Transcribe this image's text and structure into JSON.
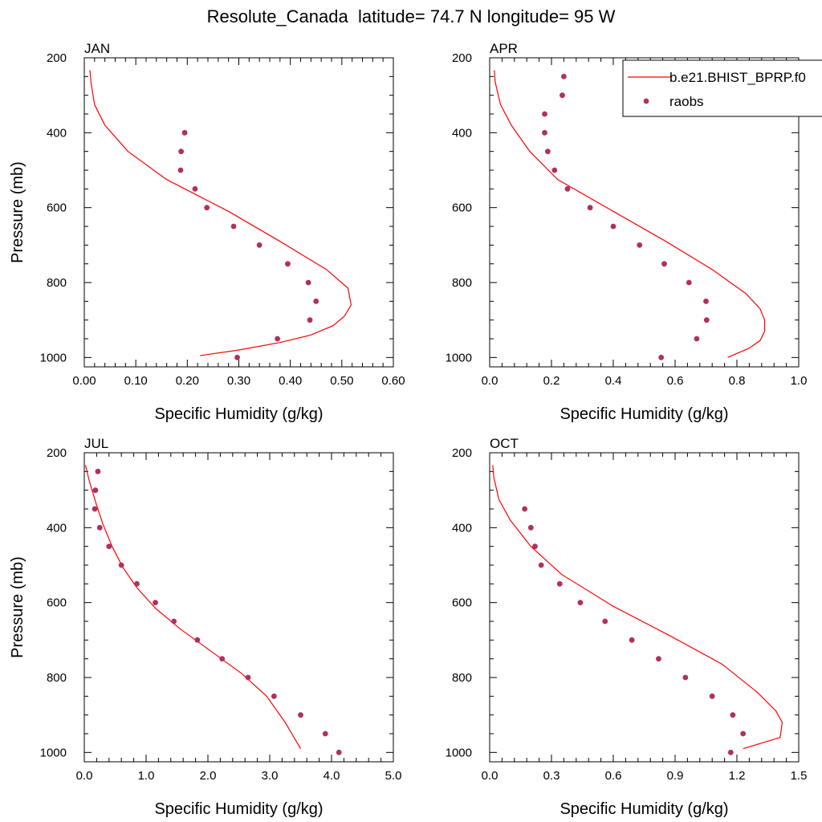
{
  "figure": {
    "title": "Resolute_Canada  latitude= 74.7 N longitude= 95 W"
  },
  "legend": {
    "model_label": "b.e21.BHIST_BPRP.f0",
    "obs_label": "raobs",
    "placement": "top-right of APR panel"
  },
  "colors": {
    "model_line": "#ff0000",
    "obs_marker": "#b03060",
    "axis": "#000000"
  },
  "chart_data": [
    {
      "type": "line",
      "panel_label": "JAN",
      "xlabel": "Specific Humidity (g/kg)",
      "ylabel": "Pressure (mb)",
      "xlim": [
        0,
        0.6
      ],
      "ylim": [
        1025,
        200
      ],
      "xticks": [
        0,
        0.1,
        0.2,
        0.3,
        0.4,
        0.5,
        0.6
      ],
      "xtick_labels": [
        "0.00",
        "0.10",
        "0.20",
        "0.30",
        "0.40",
        "0.50",
        "0.60"
      ],
      "yticks": [
        200,
        400,
        600,
        800,
        1000
      ],
      "ytick_labels": [
        "200",
        "400",
        "600",
        "800",
        "1000"
      ],
      "series": [
        {
          "name": "b.e21.BHIST_BPRP.f0",
          "kind": "line",
          "x": [
            0.011,
            0.013,
            0.02,
            0.04,
            0.085,
            0.16,
            0.28,
            0.38,
            0.47,
            0.512,
            0.518,
            0.505,
            0.483,
            0.44,
            0.38,
            0.3,
            0.225
          ],
          "y": [
            233,
            265,
            325,
            380,
            450,
            525,
            610,
            690,
            765,
            815,
            860,
            890,
            915,
            940,
            960,
            980,
            995
          ]
        },
        {
          "name": "raobs",
          "kind": "scatter",
          "x": [
            0.195,
            0.188,
            0.187,
            0.215,
            0.238,
            0.29,
            0.34,
            0.395,
            0.435,
            0.45,
            0.438,
            0.375,
            0.297
          ],
          "y": [
            400,
            450,
            500,
            550,
            600,
            650,
            700,
            750,
            800,
            850,
            900,
            950,
            1000
          ]
        }
      ]
    },
    {
      "type": "line",
      "panel_label": "APR",
      "xlabel": "Specific Humidity (g/kg)",
      "ylabel": "",
      "xlim": [
        0,
        1.0
      ],
      "ylim": [
        1025,
        200
      ],
      "xticks": [
        0,
        0.2,
        0.4,
        0.6,
        0.8,
        1.0
      ],
      "xtick_labels": [
        "0.0",
        "0.2",
        "0.4",
        "0.6",
        "0.8",
        "1.0"
      ],
      "yticks": [
        200,
        400,
        600,
        800,
        1000
      ],
      "ytick_labels": [
        "200",
        "400",
        "600",
        "800",
        "1000"
      ],
      "series": [
        {
          "name": "b.e21.BHIST_BPRP.f0",
          "kind": "line",
          "x": [
            0.015,
            0.018,
            0.035,
            0.07,
            0.13,
            0.22,
            0.4,
            0.57,
            0.72,
            0.83,
            0.875,
            0.89,
            0.89,
            0.875,
            0.84,
            0.77
          ],
          "y": [
            233,
            265,
            325,
            380,
            450,
            525,
            610,
            690,
            765,
            830,
            870,
            900,
            930,
            955,
            975,
            1000
          ]
        },
        {
          "name": "raobs",
          "kind": "scatter",
          "x": [
            0.24,
            0.235,
            0.178,
            0.178,
            0.188,
            0.21,
            0.252,
            0.325,
            0.4,
            0.485,
            0.565,
            0.645,
            0.7,
            0.702,
            0.67,
            0.555
          ],
          "y": [
            250,
            300,
            350,
            400,
            450,
            500,
            550,
            600,
            650,
            700,
            750,
            800,
            850,
            900,
            950,
            1000
          ]
        }
      ]
    },
    {
      "type": "line",
      "panel_label": "JUL",
      "xlabel": "Specific Humidity (g/kg)",
      "ylabel": "Pressure (mb)",
      "xlim": [
        0,
        5.0
      ],
      "ylim": [
        1025,
        200
      ],
      "xticks": [
        0,
        1,
        2,
        3,
        4,
        5
      ],
      "xtick_labels": [
        "0.0",
        "1.0",
        "2.0",
        "3.0",
        "4.0",
        "5.0"
      ],
      "yticks": [
        200,
        400,
        600,
        800,
        1000
      ],
      "ytick_labels": [
        "200",
        "400",
        "600",
        "800",
        "1000"
      ],
      "series": [
        {
          "name": "b.e21.BHIST_BPRP.f0",
          "kind": "line",
          "x": [
            0.02,
            0.08,
            0.18,
            0.3,
            0.45,
            0.62,
            0.85,
            1.15,
            1.55,
            2.05,
            2.55,
            2.95,
            3.25,
            3.5
          ],
          "y": [
            233,
            275,
            330,
            390,
            450,
            505,
            560,
            615,
            670,
            730,
            790,
            850,
            920,
            990
          ]
        },
        {
          "name": "raobs",
          "kind": "scatter",
          "x": [
            0.22,
            0.18,
            0.17,
            0.25,
            0.4,
            0.6,
            0.85,
            1.15,
            1.45,
            1.83,
            2.23,
            2.65,
            3.07,
            3.5,
            3.9,
            4.12
          ],
          "y": [
            250,
            300,
            350,
            400,
            450,
            500,
            550,
            600,
            650,
            700,
            750,
            800,
            850,
            900,
            950,
            1000
          ]
        }
      ]
    },
    {
      "type": "line",
      "panel_label": "OCT",
      "xlabel": "Specific Humidity (g/kg)",
      "ylabel": "",
      "xlim": [
        0,
        1.5
      ],
      "ylim": [
        1025,
        200
      ],
      "xticks": [
        0,
        0.3,
        0.6,
        0.9,
        1.2,
        1.5
      ],
      "xtick_labels": [
        "0.0",
        "0.3",
        "0.6",
        "0.9",
        "1.2",
        "1.5"
      ],
      "yticks": [
        200,
        400,
        600,
        800,
        1000
      ],
      "ytick_labels": [
        "200",
        "400",
        "600",
        "800",
        "1000"
      ],
      "series": [
        {
          "name": "b.e21.BHIST_BPRP.f0",
          "kind": "line",
          "x": [
            0.015,
            0.02,
            0.045,
            0.1,
            0.2,
            0.35,
            0.6,
            0.88,
            1.13,
            1.3,
            1.39,
            1.42,
            1.41,
            1.23
          ],
          "y": [
            233,
            265,
            325,
            380,
            450,
            525,
            610,
            690,
            765,
            840,
            890,
            920,
            960,
            990
          ]
        },
        {
          "name": "raobs",
          "kind": "scatter",
          "x": [
            0.17,
            0.2,
            0.22,
            0.25,
            0.34,
            0.44,
            0.56,
            0.69,
            0.82,
            0.95,
            1.08,
            1.18,
            1.23,
            1.17
          ],
          "y": [
            350,
            400,
            450,
            500,
            550,
            600,
            650,
            700,
            750,
            800,
            850,
            900,
            950,
            1000
          ]
        }
      ]
    }
  ]
}
